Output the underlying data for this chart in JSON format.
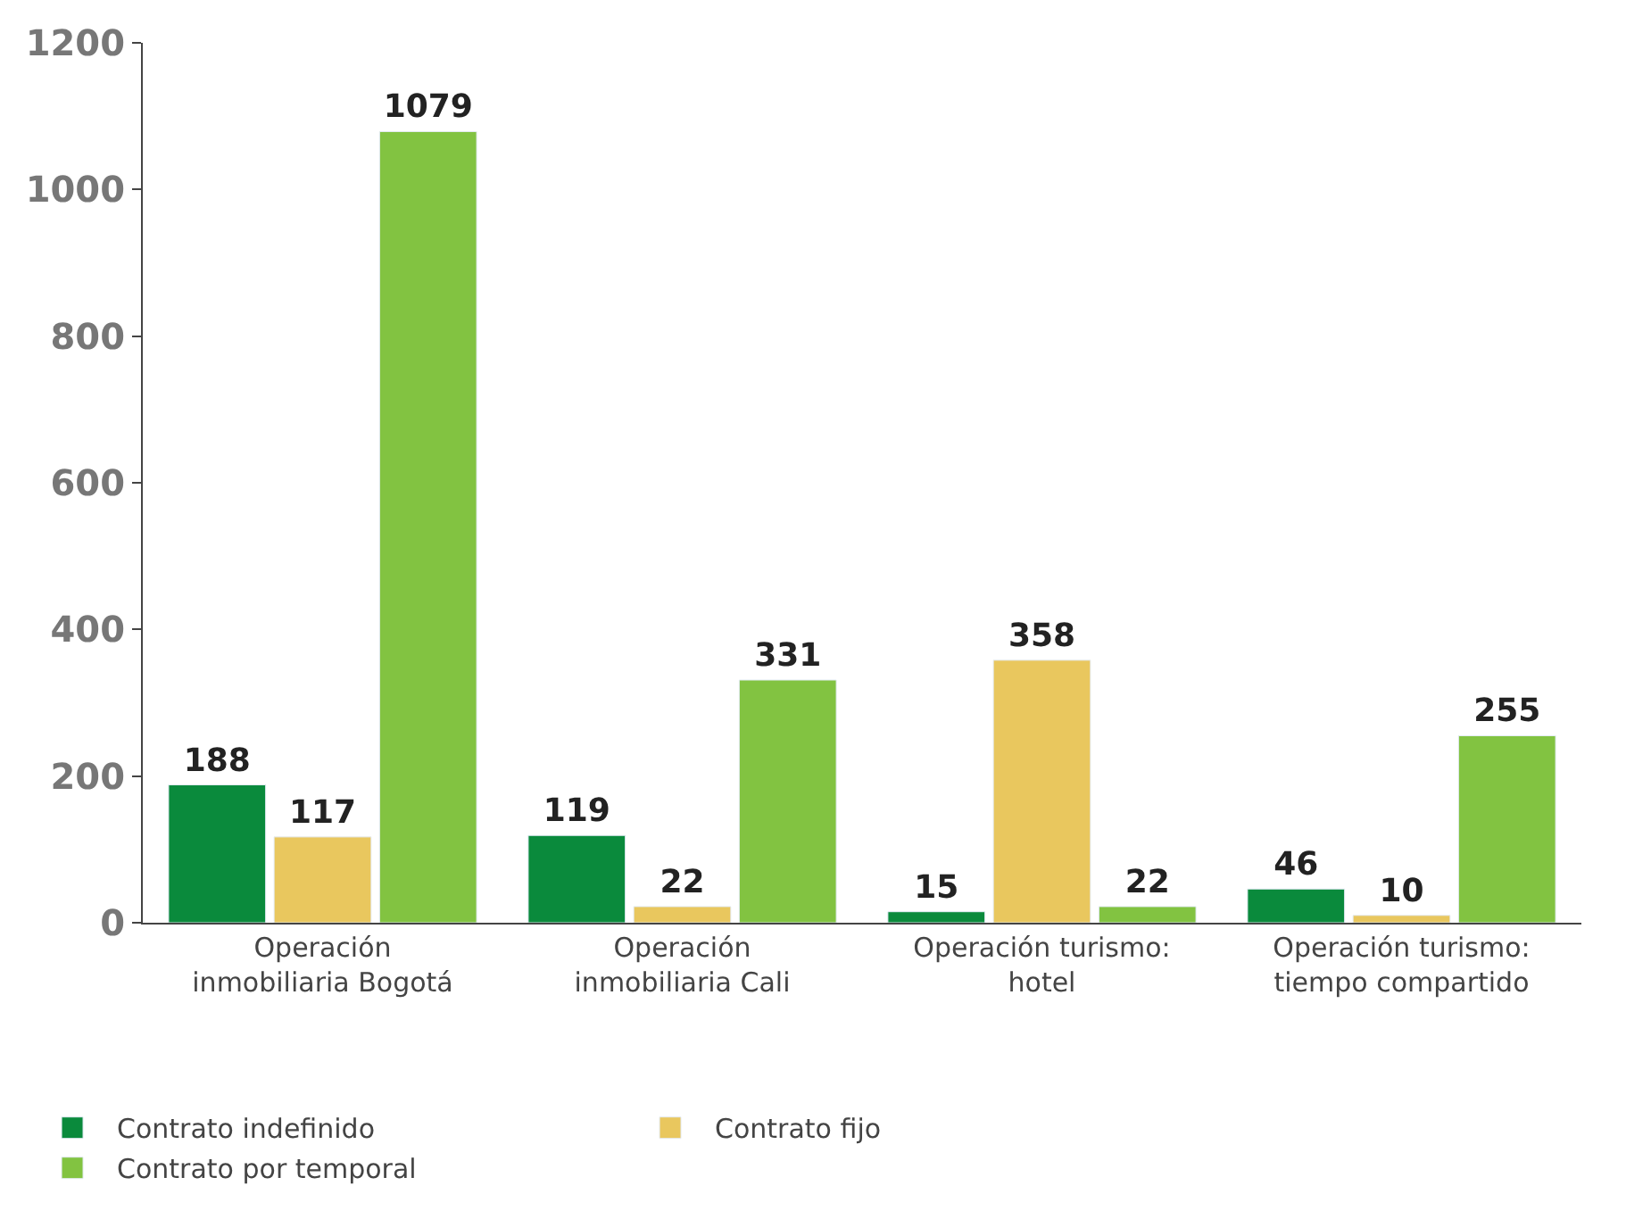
{
  "chart_data": {
    "type": "bar",
    "categories": [
      "Operación inmobiliaria Bogotá",
      "Operación inmobiliaria Cali",
      "Operación turismo: hotel",
      "Operación turismo: tiempo compartido"
    ],
    "series": [
      {
        "name": "Contrato indefinido",
        "color": "#0a8a3c",
        "values": [
          188,
          119,
          15,
          46
        ]
      },
      {
        "name": "Contrato fijo",
        "color": "#e9c75e",
        "values": [
          117,
          22,
          358,
          10
        ]
      },
      {
        "name": "Contrato por temporal",
        "color": "#82c341",
        "values": [
          1079,
          331,
          22,
          255
        ]
      }
    ],
    "ylim": [
      0,
      1200
    ],
    "yticks": [
      0,
      200,
      400,
      600,
      800,
      1000,
      1200
    ],
    "legend": "bottom",
    "data_labels": true
  }
}
